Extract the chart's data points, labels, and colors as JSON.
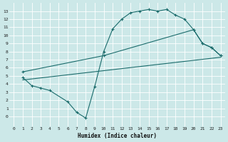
{
  "xlabel": "Humidex (Indice chaleur)",
  "bg_color": "#cce8e8",
  "grid_color": "#aad4d4",
  "line_color": "#1a6b6b",
  "xlim": [
    -0.5,
    23.5
  ],
  "ylim": [
    -1.2,
    14.0
  ],
  "xticks": [
    0,
    1,
    2,
    3,
    4,
    5,
    6,
    7,
    8,
    9,
    10,
    11,
    12,
    13,
    14,
    15,
    16,
    17,
    18,
    19,
    20,
    21,
    22,
    23
  ],
  "yticks": [
    0,
    1,
    2,
    3,
    4,
    5,
    6,
    7,
    8,
    9,
    10,
    11,
    12,
    13
  ],
  "curve1_x": [
    1,
    2,
    3,
    4,
    6,
    7,
    8,
    9,
    10,
    11,
    12,
    13,
    14,
    15,
    16,
    17,
    18,
    19,
    20,
    21,
    22,
    23
  ],
  "curve1_y": [
    4.8,
    3.8,
    3.5,
    3.2,
    1.8,
    0.5,
    -0.2,
    3.7,
    8.0,
    10.8,
    12.0,
    12.8,
    13.0,
    13.2,
    13.0,
    13.2,
    12.5,
    12.0,
    10.7,
    9.0,
    8.5,
    7.5
  ],
  "curve2_x": [
    1,
    10,
    20,
    21,
    22,
    23
  ],
  "curve2_y": [
    5.5,
    7.5,
    10.7,
    9.0,
    8.5,
    7.5
  ],
  "curve3_x": [
    1,
    23
  ],
  "curve3_y": [
    4.5,
    7.3
  ]
}
